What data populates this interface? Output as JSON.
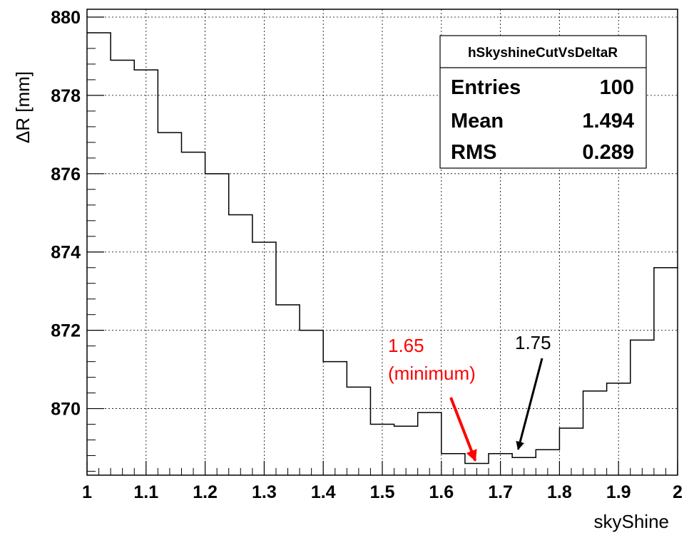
{
  "chart_data": {
    "type": "histogram-step",
    "xlabel": "skyShine",
    "ylabel": "ΔR [mm]",
    "xlim": [
      1,
      2
    ],
    "ylim": [
      868.3,
      880.2
    ],
    "grid": true,
    "x_ticks": [
      1,
      1.1,
      1.2,
      1.3,
      1.4,
      1.5,
      1.6,
      1.7,
      1.8,
      1.9,
      2
    ],
    "x_tick_labels": [
      "1",
      "1.1",
      "1.2",
      "1.3",
      "1.4",
      "1.5",
      "1.6",
      "1.7",
      "1.8",
      "1.9",
      "2"
    ],
    "y_ticks": [
      870,
      872,
      874,
      876,
      878,
      880
    ],
    "y_tick_labels": [
      "870",
      "872",
      "874",
      "876",
      "878",
      "880"
    ],
    "bin_edges": [
      1.0,
      1.04,
      1.08,
      1.12,
      1.16,
      1.2,
      1.24,
      1.28,
      1.32,
      1.36,
      1.4,
      1.44,
      1.48,
      1.52,
      1.56,
      1.6,
      1.64,
      1.68,
      1.72,
      1.76,
      1.8,
      1.84,
      1.88,
      1.92,
      1.96,
      2.0
    ],
    "values": [
      879.6,
      878.9,
      878.65,
      877.05,
      876.55,
      876.0,
      874.95,
      874.25,
      872.65,
      872.0,
      871.2,
      870.55,
      869.6,
      869.55,
      869.9,
      868.85,
      868.6,
      868.85,
      868.75,
      868.95,
      869.5,
      870.45,
      870.65,
      871.75,
      873.6
    ],
    "stats_box": {
      "title": "hSkyshineCutVsDeltaR",
      "rows": [
        {
          "label": "Entries",
          "value": "100"
        },
        {
          "label": "Mean",
          "value": "1.494"
        },
        {
          "label": "RMS",
          "value": "0.289"
        }
      ]
    },
    "annotations": [
      {
        "lines": [
          "1.65",
          "(minimum)"
        ],
        "color": "#ff0000",
        "arrow_to": [
          1.655,
          868.6
        ]
      },
      {
        "lines": [
          "1.75"
        ],
        "color": "#000000",
        "arrow_to": [
          1.73,
          868.85
        ]
      }
    ]
  }
}
